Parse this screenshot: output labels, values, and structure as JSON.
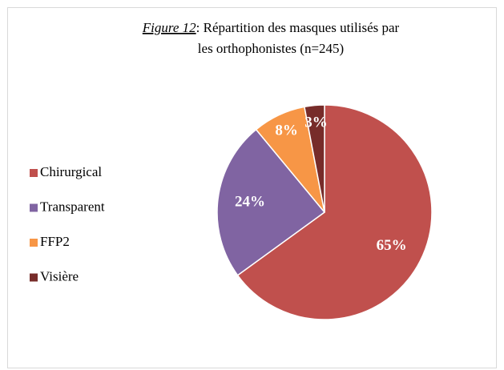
{
  "chart_data": {
    "type": "pie",
    "title_prefix": "Figure 12",
    "title_lines": [
      ": Répartition des masques utilisés par",
      "les orthophonistes (n=245)"
    ],
    "categories": [
      "Chirurgical",
      "Transparent",
      "FFP2",
      "Visière"
    ],
    "values": [
      65,
      24,
      8,
      3
    ],
    "value_labels": [
      "65%",
      "24%",
      "8%",
      "3%"
    ],
    "colors": [
      "#c0504d",
      "#8064a2",
      "#f79646",
      "#772c2a"
    ],
    "legend": "left"
  }
}
